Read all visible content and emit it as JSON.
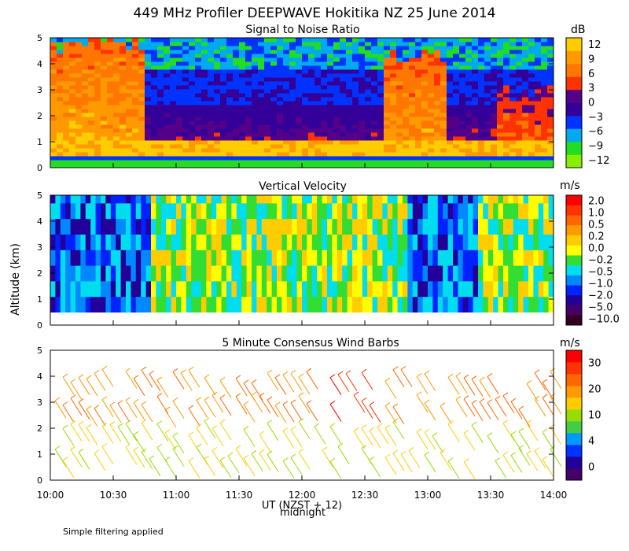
{
  "title": "449 MHz Profiler DEEPWAVE Hokitika NZ 25 June 2014",
  "ylabel": "Altitude (km)",
  "xlabel": "UT  (NZST + 12)",
  "midnight_label": "midnight",
  "footnote": "Simple filtering applied",
  "colors": {
    "snr_bar": [
      "#88ee00",
      "#22dd22",
      "#00aaee",
      "#0033ff",
      "#330099",
      "#550088",
      "#ff3300",
      "#ff7700",
      "#ff9900",
      "#ffcc00"
    ],
    "vv_bar": [
      "#330022",
      "#440066",
      "#220099",
      "#0022ff",
      "#0088ff",
      "#00ddee",
      "#33dd33",
      "#ffff00",
      "#ffcc00",
      "#ff9900",
      "#ff6600",
      "#ff3300",
      "#ff0000"
    ],
    "wind_bar": [
      "#440066",
      "#220099",
      "#0033ff",
      "#0099ff",
      "#44cc44",
      "#99dd00",
      "#ffcc00",
      "#ff9900",
      "#ff6600",
      "#ff3300",
      "#ff0000"
    ]
  },
  "chart_data": [
    {
      "type": "heatmap",
      "name": "snr",
      "title": "Signal to Noise Ratio",
      "xlabel": "UT  (NZST + 12)",
      "ylabel": "Altitude (km)",
      "xlim": [
        10.0,
        14.0
      ],
      "ylim": [
        0,
        5
      ],
      "xticks": [
        "10:00",
        "10:30",
        "11:00",
        "11:30",
        "12:00",
        "12:30",
        "13:00",
        "13:30",
        "14:00"
      ],
      "yticks": [
        "0",
        "1",
        "2",
        "3",
        "4",
        "5"
      ],
      "colorbar": {
        "unit": "dB",
        "ticks": [
          "12",
          "9",
          "6",
          "3",
          "0",
          "−3",
          "−6",
          "−9",
          "−12"
        ],
        "values": [
          12,
          9,
          6,
          3,
          0,
          -3,
          -6,
          -9,
          -12
        ]
      }
    },
    {
      "type": "heatmap",
      "name": "vertical_velocity",
      "title": "Vertical Velocity",
      "xlim": [
        10.0,
        14.0
      ],
      "ylim": [
        0,
        5
      ],
      "yticks": [
        "0",
        "1",
        "2",
        "3",
        "4",
        "5"
      ],
      "colorbar": {
        "unit": "m/s",
        "ticks": [
          "2.0",
          "1.0",
          "0.5",
          "0.2",
          "0.0",
          "−0.2",
          "−0.5",
          "−1.0",
          "−2.0",
          "−5.0",
          "−10.0"
        ],
        "values": [
          2.0,
          1.0,
          0.5,
          0.2,
          0.0,
          -0.2,
          -0.5,
          -1.0,
          -2.0,
          -5.0,
          -10.0
        ]
      }
    },
    {
      "type": "scatter",
      "name": "wind_barbs",
      "title": "5 Minute Consensus Wind Barbs",
      "xlim": [
        10.0,
        14.0
      ],
      "ylim": [
        0,
        5
      ],
      "yticks": [
        "0",
        "1",
        "2",
        "3",
        "4",
        "5"
      ],
      "colorbar": {
        "unit": "m/s",
        "ticks": [
          "30",
          "20",
          "10",
          "4",
          "0"
        ],
        "values": [
          30,
          20,
          10,
          4,
          0
        ]
      }
    }
  ]
}
